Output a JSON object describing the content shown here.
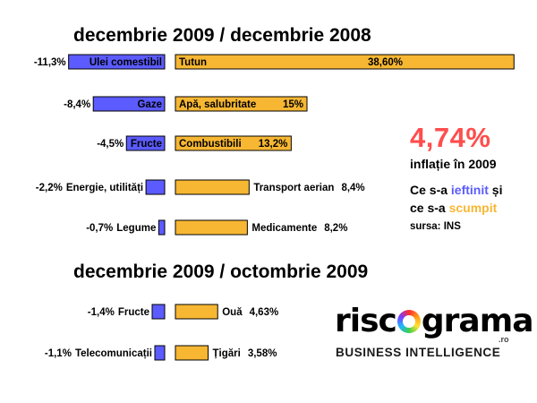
{
  "colors": {
    "blue": "#5b5bff",
    "orange": "#f7b733",
    "highlight": "#ff4d4d"
  },
  "chart_data": [
    {
      "type": "bar",
      "title": "decembrie 2009 / decembrie 2008",
      "cheaper": [
        {
          "label": "Ulei comestibil",
          "value": -11.3,
          "value_label": "-11,3%"
        },
        {
          "label": "Gaze",
          "value": -8.4,
          "value_label": "-8,4%"
        },
        {
          "label": "Fructe",
          "value": -4.5,
          "value_label": "-4,5%"
        },
        {
          "label": "Energie, utilități",
          "value": -2.2,
          "value_label": "-2,2%"
        },
        {
          "label": "Legume",
          "value": -0.7,
          "value_label": "-0,7%"
        }
      ],
      "pricier": [
        {
          "label": "Tutun",
          "value": 38.6,
          "value_label": "38,60%"
        },
        {
          "label": "Apă, salubritate",
          "value": 15,
          "value_label": "15%"
        },
        {
          "label": "Combustibili",
          "value": 13.2,
          "value_label": "13,2%"
        },
        {
          "label": "Transport aerian",
          "value": 8.4,
          "value_label": "8,4%"
        },
        {
          "label": "Medicamente",
          "value": 8.2,
          "value_label": "8,2%"
        }
      ]
    },
    {
      "type": "bar",
      "title": "decembrie 2009 / octombrie 2009",
      "cheaper": [
        {
          "label": "Fructe",
          "value": -1.4,
          "value_label": "-1,4%"
        },
        {
          "label": "Telecomunicații",
          "value": -1.1,
          "value_label": "-1,1%"
        }
      ],
      "pricier": [
        {
          "label": "Ouă",
          "value": 4.63,
          "value_label": "4,63%"
        },
        {
          "label": "Țigări",
          "value": 3.58,
          "value_label": "3,58%"
        }
      ]
    }
  ],
  "inflation": {
    "value": "4,74%",
    "label": "inflație în 2009"
  },
  "legend": {
    "line1_prefix": "Ce s-a ",
    "cheaper_word": "ieftinit",
    "line1_suffix": " și",
    "line2_prefix": "ce s-a ",
    "pricier_word": "scumpit"
  },
  "source": "sursa: INS",
  "logo": {
    "word_left": "risc",
    "word_right": "grama",
    "domain": ".ro",
    "tagline": "BUSINESS INTELLIGENCE"
  }
}
